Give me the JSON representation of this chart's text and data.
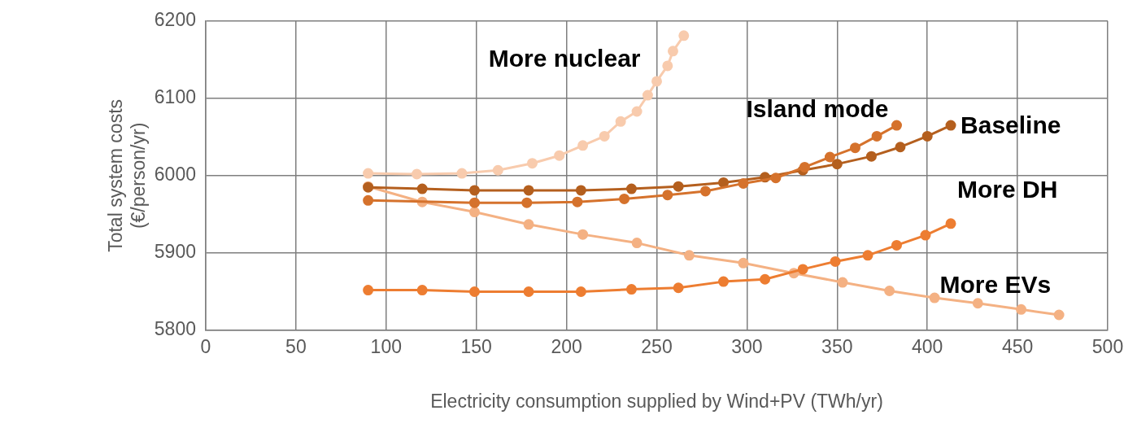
{
  "chart_data": {
    "type": "line",
    "xlabel": "Electricity consumption supplied by Wind+PV (TWh/yr)",
    "ylabel": "Total system costs (€/person/yr)",
    "xlim": [
      0,
      500
    ],
    "xticks": [
      0,
      50,
      100,
      150,
      200,
      250,
      300,
      350,
      400,
      450,
      500
    ],
    "ylim": [
      5800,
      6200
    ],
    "yticks": [
      5800,
      5900,
      6000,
      6100,
      6200
    ],
    "grid": true,
    "legend": false,
    "marker": "circle",
    "line_style": "solid",
    "series": [
      {
        "name": "More nuclear",
        "color": "#f8cbad",
        "x": [
          90,
          117,
          142,
          162,
          181,
          196,
          209,
          221,
          230,
          239,
          245,
          250,
          256,
          259,
          265
        ],
        "values": [
          6003,
          6002,
          6003,
          6007,
          6016,
          6026,
          6039,
          6051,
          6070,
          6083,
          6104,
          6122,
          6142,
          6161,
          6181
        ]
      },
      {
        "name": "Island mode",
        "color": "#d5722c",
        "x": [
          90,
          149,
          178,
          206,
          232,
          256,
          277,
          298,
          316,
          332,
          346,
          360,
          372,
          383
        ],
        "values": [
          5968,
          5965,
          5965,
          5966,
          5970,
          5975,
          5980,
          5990,
          5997,
          6011,
          6024,
          6036,
          6051,
          6065
        ]
      },
      {
        "name": "Baseline",
        "color": "#b45f1e",
        "x": [
          90,
          120,
          149,
          179,
          208,
          236,
          262,
          287,
          310,
          331,
          350,
          369,
          385,
          400,
          413
        ],
        "values": [
          5985,
          5983,
          5981,
          5981,
          5981,
          5983,
          5986,
          5991,
          5998,
          6007,
          6015,
          6025,
          6037,
          6051,
          6065
        ]
      },
      {
        "name": "More DH",
        "color": "#ed7d31",
        "x": [
          90,
          120,
          149,
          179,
          208,
          236,
          262,
          287,
          310,
          331,
          349,
          367,
          383,
          399,
          413
        ],
        "values": [
          5852,
          5852,
          5850,
          5850,
          5850,
          5853,
          5855,
          5863,
          5866,
          5879,
          5889,
          5897,
          5910,
          5923,
          5938
        ]
      },
      {
        "name": "More EVs",
        "color": "#f4b183",
        "x": [
          90,
          120,
          149,
          179,
          209,
          239,
          268,
          298,
          326,
          353,
          379,
          404,
          428,
          452,
          473
        ],
        "values": [
          5986,
          5966,
          5953,
          5937,
          5924,
          5913,
          5897,
          5887,
          5874,
          5862,
          5851,
          5842,
          5835,
          5827,
          5820
        ]
      }
    ]
  }
}
